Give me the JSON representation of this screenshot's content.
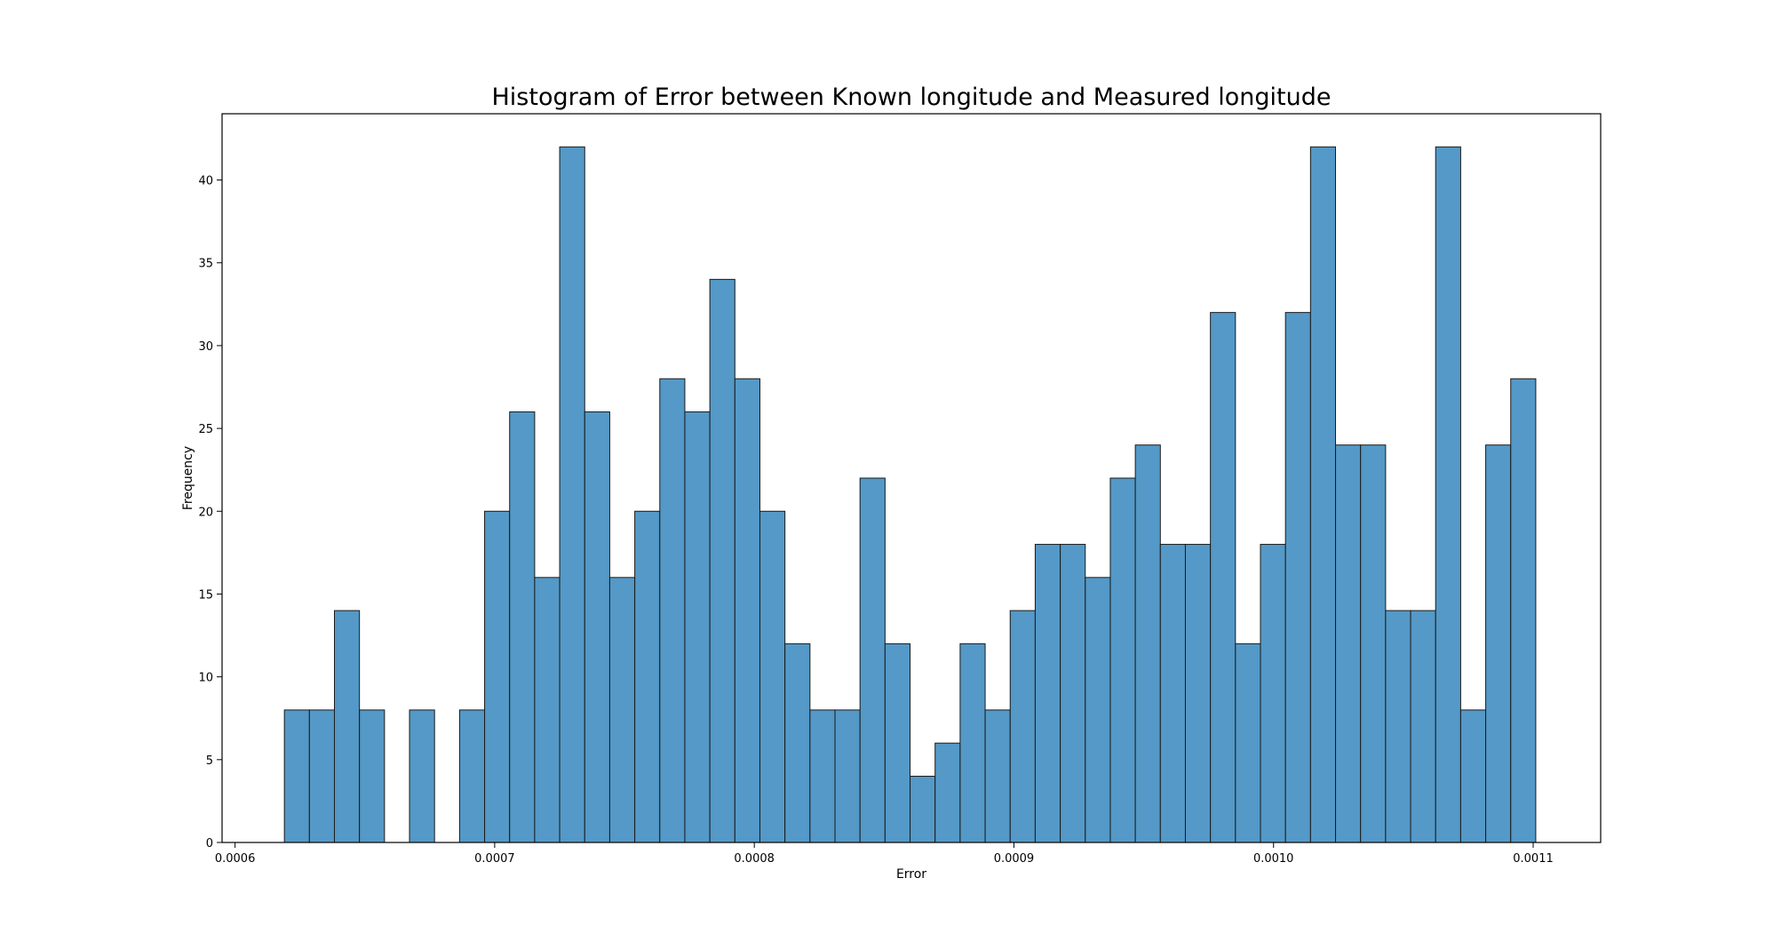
{
  "chart_data": {
    "type": "bar",
    "title": "Histogram of Error between Known longitude and Measured longitude",
    "xlabel": "Error",
    "ylabel": "Frequency",
    "xlim": [
      0.000595,
      0.001126
    ],
    "ylim": [
      0,
      44
    ],
    "x_ticks": [
      {
        "value": 0.0006,
        "label": "0.0006"
      },
      {
        "value": 0.0007,
        "label": "0.0007"
      },
      {
        "value": 0.0008,
        "label": "0.0008"
      },
      {
        "value": 0.0009,
        "label": "0.0009"
      },
      {
        "value": 0.001,
        "label": "0.0010"
      },
      {
        "value": 0.0011,
        "label": "0.0011"
      }
    ],
    "y_ticks": [
      {
        "value": 0,
        "label": "0"
      },
      {
        "value": 5,
        "label": "5"
      },
      {
        "value": 10,
        "label": "10"
      },
      {
        "value": 15,
        "label": "15"
      },
      {
        "value": 20,
        "label": "20"
      },
      {
        "value": 25,
        "label": "25"
      },
      {
        "value": 30,
        "label": "30"
      },
      {
        "value": 35,
        "label": "35"
      },
      {
        "value": 40,
        "label": "40"
      }
    ],
    "bin_start": 0.000619,
    "bin_width": 9.64e-06,
    "values": [
      8,
      8,
      14,
      8,
      0,
      8,
      0,
      8,
      20,
      26,
      16,
      42,
      26,
      16,
      20,
      28,
      26,
      34,
      28,
      20,
      12,
      8,
      8,
      22,
      12,
      4,
      6,
      12,
      8,
      14,
      18,
      18,
      16,
      22,
      24,
      18,
      18,
      32,
      12,
      18,
      32,
      42,
      24,
      24,
      14,
      14,
      42,
      8,
      24,
      28
    ],
    "bar_color": "#5499c7",
    "edge_color": "#1a1a1a",
    "grid": false,
    "legend": "none"
  }
}
